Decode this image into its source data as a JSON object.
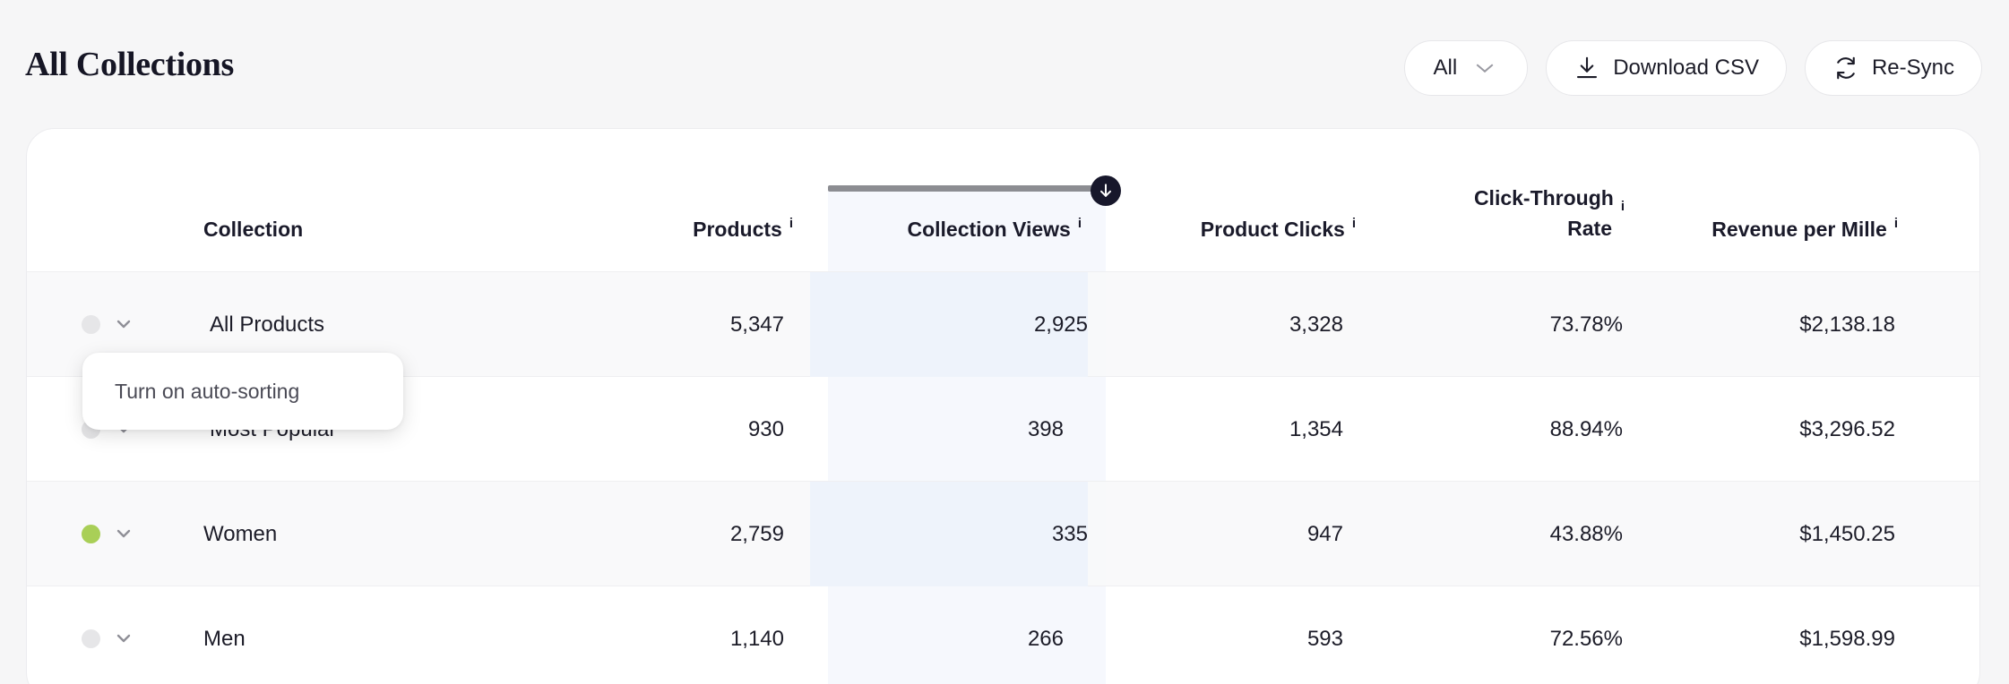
{
  "header": {
    "title": "All Collections",
    "filter_value": "All",
    "download_label": "Download CSV",
    "resync_label": "Re-Sync"
  },
  "table": {
    "columns": {
      "collection": "Collection",
      "products": "Products",
      "views": "Collection Views",
      "clicks": "Product Clicks",
      "ctr_line1": "Click-Through",
      "ctr_line2": "Rate",
      "rpm": "Revenue per Mille",
      "info": "i"
    },
    "sorted_column": "Collection Views",
    "rows": [
      {
        "name": "All Products",
        "products": "5,347",
        "views": "2,925",
        "clicks": "3,328",
        "ctr": "73.78%",
        "rpm": "$2,138.18",
        "auto_sort": false
      },
      {
        "name": "Most Popular",
        "products": "930",
        "views": "398",
        "clicks": "1,354",
        "ctr": "88.94%",
        "rpm": "$3,296.52",
        "auto_sort": false
      },
      {
        "name": "Women",
        "products": "2,759",
        "views": "335",
        "clicks": "947",
        "ctr": "43.88%",
        "rpm": "$1,450.25",
        "auto_sort": true
      },
      {
        "name": "Men",
        "products": "1,140",
        "views": "266",
        "clicks": "593",
        "ctr": "72.56%",
        "rpm": "$1,598.99",
        "auto_sort": false
      }
    ]
  },
  "tooltip": {
    "text": "Turn on auto-sorting"
  },
  "colors": {
    "accent_dark": "#17172b",
    "status_on": "#a9cf57",
    "status_off": "#e6e6e8",
    "highlight_col": "#f6f8fd"
  }
}
